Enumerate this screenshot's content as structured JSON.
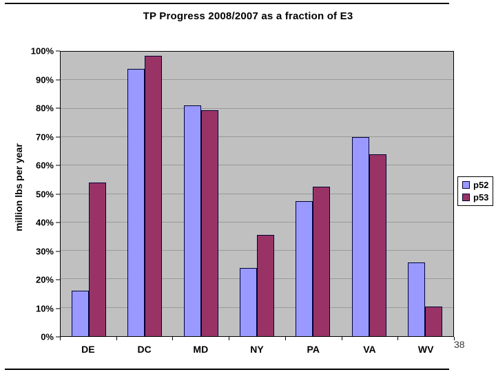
{
  "slide": {
    "page_number": "38"
  },
  "chart": {
    "title": "TP Progress 2008/2007 as a fraction of E3",
    "y_axis_title": "million lbs per year",
    "y_tick_labels": [
      "0%",
      "10%",
      "20%",
      "30%",
      "40%",
      "50%",
      "60%",
      "70%",
      "80%",
      "90%",
      "100%"
    ]
  },
  "chart_data": {
    "type": "bar",
    "title": "TP Progress 2008/2007 as a fraction of E3",
    "categories": [
      "DE",
      "DC",
      "MD",
      "NY",
      "PA",
      "VA",
      "WV"
    ],
    "series": [
      {
        "name": "p52",
        "color": "#9999ff",
        "values": [
          16,
          94,
          81,
          24,
          47.5,
          70,
          26
        ]
      },
      {
        "name": "p53",
        "color": "#993366",
        "values": [
          54,
          98.5,
          79.5,
          35.5,
          52.5,
          64,
          10.5
        ]
      }
    ],
    "xlabel": "",
    "ylabel": "million lbs per year",
    "ylim": [
      0,
      100
    ],
    "ytick_step": 10,
    "ytick_format": "percent",
    "grid": true,
    "legend_position": "right",
    "plot_background": "#c0c0c0"
  }
}
